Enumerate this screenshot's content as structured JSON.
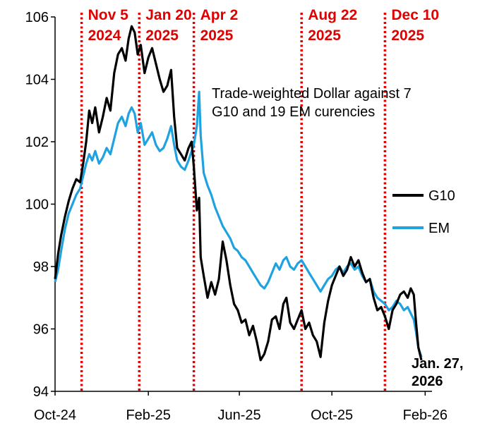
{
  "chart_data": {
    "type": "line",
    "title": "",
    "xlabel": "",
    "ylabel": "",
    "annotation": [
      "Trade-weighted Dollar against 7",
      "G10 and 19 EM curencies"
    ],
    "end_label": [
      "Jan. 27,",
      "2026"
    ],
    "legend_position": "right",
    "grid": false,
    "ylim": [
      94,
      106
    ],
    "yticks": [
      94,
      96,
      98,
      100,
      102,
      104,
      106
    ],
    "xlim": [
      "2024-10-01",
      "2026-02-10"
    ],
    "xticks": [
      {
        "label": "Oct-24",
        "date": "2024-10-01"
      },
      {
        "label": "Feb-25",
        "date": "2025-02-01"
      },
      {
        "label": "Jun-25",
        "date": "2025-06-01"
      },
      {
        "label": "Oct-25",
        "date": "2025-10-01"
      },
      {
        "label": "Feb-26",
        "date": "2026-02-01"
      }
    ],
    "events": [
      {
        "date": "2024-11-05",
        "label": [
          "Nov 5",
          "2024"
        ]
      },
      {
        "date": "2025-01-20",
        "label": [
          "Jan 20",
          "2025"
        ]
      },
      {
        "date": "2025-04-02",
        "label": [
          "Apr 2",
          "2025"
        ]
      },
      {
        "date": "2025-08-22",
        "label": [
          "Aug 22",
          "2025"
        ]
      },
      {
        "date": "2025-12-10",
        "label": [
          "Dec 10",
          "2025"
        ]
      }
    ],
    "series": [
      {
        "name": "G10",
        "color": "#000000",
        "points": [
          [
            "2024-10-01",
            97.6
          ],
          [
            "2024-10-05",
            98.4
          ],
          [
            "2024-10-09",
            99.0
          ],
          [
            "2024-10-14",
            99.6
          ],
          [
            "2024-10-19",
            100.1
          ],
          [
            "2024-10-24",
            100.5
          ],
          [
            "2024-10-29",
            100.8
          ],
          [
            "2024-11-03",
            100.7
          ],
          [
            "2024-11-07",
            101.3
          ],
          [
            "2024-11-11",
            102.0
          ],
          [
            "2024-11-15",
            103.0
          ],
          [
            "2024-11-19",
            102.6
          ],
          [
            "2024-11-23",
            103.1
          ],
          [
            "2024-11-28",
            102.3
          ],
          [
            "2024-12-03",
            102.8
          ],
          [
            "2024-12-08",
            103.4
          ],
          [
            "2024-12-13",
            103.0
          ],
          [
            "2024-12-18",
            104.2
          ],
          [
            "2024-12-23",
            104.8
          ],
          [
            "2024-12-28",
            105.0
          ],
          [
            "2025-01-02",
            104.6
          ],
          [
            "2025-01-06",
            105.3
          ],
          [
            "2025-01-10",
            105.7
          ],
          [
            "2025-01-14",
            105.5
          ],
          [
            "2025-01-18",
            104.8
          ],
          [
            "2025-01-22",
            105.1
          ],
          [
            "2025-01-27",
            104.2
          ],
          [
            "2025-02-01",
            104.7
          ],
          [
            "2025-02-06",
            105.0
          ],
          [
            "2025-02-11",
            104.5
          ],
          [
            "2025-02-16",
            104.0
          ],
          [
            "2025-02-21",
            103.6
          ],
          [
            "2025-02-26",
            103.8
          ],
          [
            "2025-03-03",
            104.3
          ],
          [
            "2025-03-07",
            102.8
          ],
          [
            "2025-03-11",
            101.8
          ],
          [
            "2025-03-16",
            101.6
          ],
          [
            "2025-03-21",
            101.4
          ],
          [
            "2025-03-26",
            101.8
          ],
          [
            "2025-03-30",
            102.0
          ],
          [
            "2025-04-02",
            101.2
          ],
          [
            "2025-04-06",
            99.8
          ],
          [
            "2025-04-09",
            100.2
          ],
          [
            "2025-04-11",
            98.3
          ],
          [
            "2025-04-15",
            97.7
          ],
          [
            "2025-04-20",
            97.0
          ],
          [
            "2025-04-25",
            97.5
          ],
          [
            "2025-04-30",
            97.1
          ],
          [
            "2025-05-05",
            97.6
          ],
          [
            "2025-05-10",
            98.8
          ],
          [
            "2025-05-15",
            98.2
          ],
          [
            "2025-05-20",
            97.4
          ],
          [
            "2025-05-25",
            96.8
          ],
          [
            "2025-05-30",
            96.6
          ],
          [
            "2025-06-04",
            96.2
          ],
          [
            "2025-06-09",
            96.3
          ],
          [
            "2025-06-14",
            95.8
          ],
          [
            "2025-06-19",
            96.1
          ],
          [
            "2025-06-24",
            95.6
          ],
          [
            "2025-06-29",
            95.0
          ],
          [
            "2025-07-04",
            95.2
          ],
          [
            "2025-07-09",
            95.6
          ],
          [
            "2025-07-14",
            96.3
          ],
          [
            "2025-07-19",
            96.4
          ],
          [
            "2025-07-24",
            96.0
          ],
          [
            "2025-07-29",
            96.8
          ],
          [
            "2025-08-02",
            97.0
          ],
          [
            "2025-08-07",
            96.2
          ],
          [
            "2025-08-12",
            96.0
          ],
          [
            "2025-08-17",
            96.3
          ],
          [
            "2025-08-22",
            96.6
          ],
          [
            "2025-08-27",
            96.0
          ],
          [
            "2025-09-01",
            96.2
          ],
          [
            "2025-09-06",
            95.8
          ],
          [
            "2025-09-11",
            95.6
          ],
          [
            "2025-09-16",
            95.1
          ],
          [
            "2025-09-21",
            96.2
          ],
          [
            "2025-09-26",
            96.9
          ],
          [
            "2025-10-01",
            97.4
          ],
          [
            "2025-10-06",
            97.7
          ],
          [
            "2025-10-11",
            98.0
          ],
          [
            "2025-10-16",
            97.7
          ],
          [
            "2025-10-21",
            97.9
          ],
          [
            "2025-10-26",
            98.3
          ],
          [
            "2025-10-31",
            98.0
          ],
          [
            "2025-11-05",
            98.2
          ],
          [
            "2025-11-10",
            97.8
          ],
          [
            "2025-11-15",
            97.5
          ],
          [
            "2025-11-20",
            97.6
          ],
          [
            "2025-11-25",
            97.0
          ],
          [
            "2025-11-30",
            96.6
          ],
          [
            "2025-12-05",
            96.7
          ],
          [
            "2025-12-10",
            96.4
          ],
          [
            "2025-12-15",
            96.0
          ],
          [
            "2025-12-20",
            96.6
          ],
          [
            "2025-12-25",
            96.8
          ],
          [
            "2025-12-30",
            97.1
          ],
          [
            "2026-01-04",
            97.2
          ],
          [
            "2026-01-09",
            97.0
          ],
          [
            "2026-01-13",
            97.3
          ],
          [
            "2026-01-17",
            97.1
          ],
          [
            "2026-01-20",
            96.2
          ],
          [
            "2026-01-23",
            95.4
          ],
          [
            "2026-01-27",
            95.0
          ]
        ]
      },
      {
        "name": "EM",
        "color": "#1fa2e0",
        "points": [
          [
            "2024-10-01",
            97.5
          ],
          [
            "2024-10-05",
            97.9
          ],
          [
            "2024-10-09",
            98.5
          ],
          [
            "2024-10-14",
            99.2
          ],
          [
            "2024-10-19",
            99.7
          ],
          [
            "2024-10-24",
            100.0
          ],
          [
            "2024-10-29",
            100.3
          ],
          [
            "2024-11-03",
            100.5
          ],
          [
            "2024-11-07",
            100.9
          ],
          [
            "2024-11-11",
            101.3
          ],
          [
            "2024-11-15",
            101.6
          ],
          [
            "2024-11-19",
            101.4
          ],
          [
            "2024-11-23",
            101.7
          ],
          [
            "2024-11-28",
            101.3
          ],
          [
            "2024-12-03",
            101.5
          ],
          [
            "2024-12-08",
            101.8
          ],
          [
            "2024-12-13",
            101.6
          ],
          [
            "2024-12-18",
            102.1
          ],
          [
            "2024-12-23",
            102.6
          ],
          [
            "2024-12-28",
            102.8
          ],
          [
            "2025-01-02",
            102.5
          ],
          [
            "2025-01-06",
            102.9
          ],
          [
            "2025-01-10",
            103.1
          ],
          [
            "2025-01-14",
            102.9
          ],
          [
            "2025-01-18",
            102.3
          ],
          [
            "2025-01-22",
            102.6
          ],
          [
            "2025-01-27",
            101.9
          ],
          [
            "2025-02-01",
            102.1
          ],
          [
            "2025-02-06",
            102.3
          ],
          [
            "2025-02-11",
            101.9
          ],
          [
            "2025-02-16",
            101.7
          ],
          [
            "2025-02-21",
            101.8
          ],
          [
            "2025-02-26",
            102.1
          ],
          [
            "2025-03-03",
            102.5
          ],
          [
            "2025-03-07",
            101.9
          ],
          [
            "2025-03-11",
            101.4
          ],
          [
            "2025-03-16",
            101.2
          ],
          [
            "2025-03-21",
            101.1
          ],
          [
            "2025-03-26",
            101.4
          ],
          [
            "2025-03-30",
            101.7
          ],
          [
            "2025-04-02",
            101.9
          ],
          [
            "2025-04-06",
            102.5
          ],
          [
            "2025-04-09",
            103.6
          ],
          [
            "2025-04-11",
            102.2
          ],
          [
            "2025-04-15",
            101.0
          ],
          [
            "2025-04-20",
            100.6
          ],
          [
            "2025-04-25",
            100.3
          ],
          [
            "2025-04-30",
            99.9
          ],
          [
            "2025-05-05",
            99.6
          ],
          [
            "2025-05-10",
            99.3
          ],
          [
            "2025-05-15",
            99.1
          ],
          [
            "2025-05-20",
            98.9
          ],
          [
            "2025-05-25",
            98.6
          ],
          [
            "2025-05-30",
            98.5
          ],
          [
            "2025-06-04",
            98.3
          ],
          [
            "2025-06-09",
            98.2
          ],
          [
            "2025-06-14",
            98.0
          ],
          [
            "2025-06-19",
            97.8
          ],
          [
            "2025-06-24",
            97.6
          ],
          [
            "2025-06-29",
            97.4
          ],
          [
            "2025-07-04",
            97.3
          ],
          [
            "2025-07-09",
            97.5
          ],
          [
            "2025-07-14",
            97.8
          ],
          [
            "2025-07-19",
            98.1
          ],
          [
            "2025-07-24",
            97.9
          ],
          [
            "2025-07-29",
            98.2
          ],
          [
            "2025-08-02",
            98.3
          ],
          [
            "2025-08-07",
            98.0
          ],
          [
            "2025-08-12",
            97.9
          ],
          [
            "2025-08-17",
            98.1
          ],
          [
            "2025-08-22",
            98.2
          ],
          [
            "2025-08-27",
            98.0
          ],
          [
            "2025-09-01",
            97.8
          ],
          [
            "2025-09-06",
            97.6
          ],
          [
            "2025-09-11",
            97.4
          ],
          [
            "2025-09-16",
            97.2
          ],
          [
            "2025-09-21",
            97.4
          ],
          [
            "2025-09-26",
            97.6
          ],
          [
            "2025-10-01",
            97.7
          ],
          [
            "2025-10-06",
            97.9
          ],
          [
            "2025-10-11",
            98.0
          ],
          [
            "2025-10-16",
            97.8
          ],
          [
            "2025-10-21",
            98.0
          ],
          [
            "2025-10-26",
            98.1
          ],
          [
            "2025-10-31",
            97.9
          ],
          [
            "2025-11-05",
            98.0
          ],
          [
            "2025-11-10",
            97.7
          ],
          [
            "2025-11-15",
            97.5
          ],
          [
            "2025-11-20",
            97.6
          ],
          [
            "2025-11-25",
            97.2
          ],
          [
            "2025-11-30",
            97.0
          ],
          [
            "2025-12-05",
            96.9
          ],
          [
            "2025-12-10",
            96.8
          ],
          [
            "2025-12-15",
            96.6
          ],
          [
            "2025-12-20",
            96.7
          ],
          [
            "2025-12-25",
            96.9
          ],
          [
            "2025-12-30",
            96.8
          ],
          [
            "2026-01-04",
            96.6
          ],
          [
            "2026-01-09",
            96.7
          ],
          [
            "2026-01-13",
            96.5
          ],
          [
            "2026-01-17",
            96.3
          ],
          [
            "2026-01-20",
            95.9
          ],
          [
            "2026-01-23",
            95.4
          ],
          [
            "2026-01-27",
            95.1
          ]
        ]
      }
    ]
  }
}
